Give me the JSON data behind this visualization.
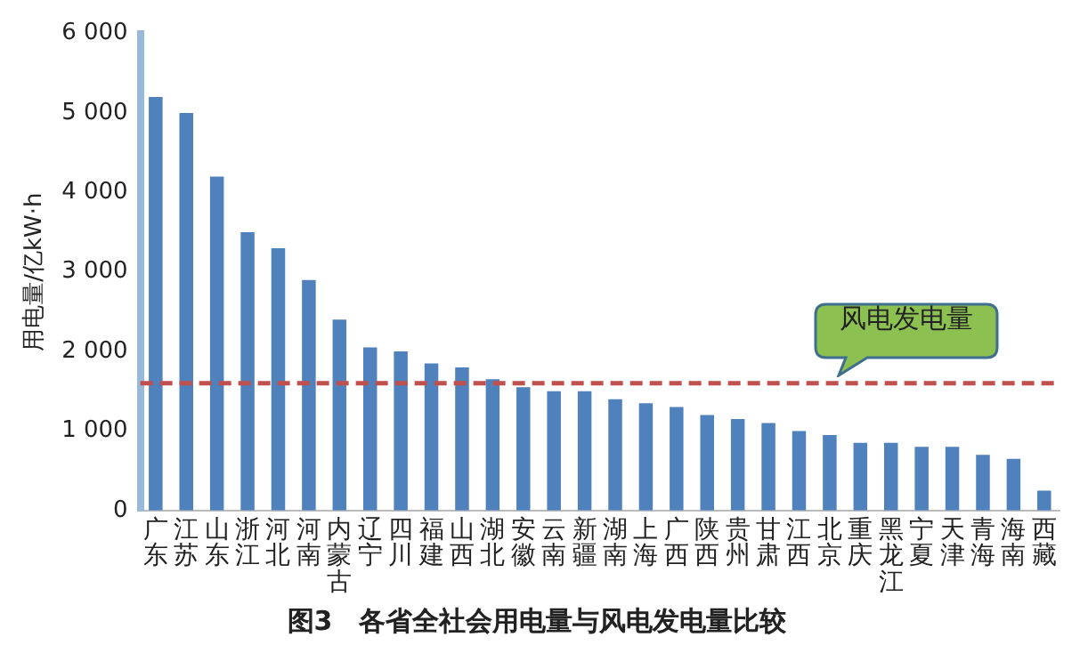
{
  "chart_data": {
    "type": "bar",
    "title": "图3　各省全社会用电量与风电发电量比较",
    "ylabel": "用电量/亿kW·h",
    "categories": [
      "广东",
      "江苏",
      "山东",
      "浙江",
      "河北",
      "河南",
      "内蒙古",
      "辽宁",
      "四川",
      "福建",
      "山西",
      "湖北",
      "安徽",
      "云南",
      "新疆",
      "湖南",
      "上海",
      "广西",
      "陕西",
      "贵州",
      "甘肃",
      "江西",
      "北京",
      "重庆",
      "黑龙江",
      "宁夏",
      "天津",
      "青海",
      "海南",
      "西藏"
    ],
    "values": [
      5200,
      5000,
      4200,
      3500,
      3300,
      2900,
      2400,
      2050,
      2000,
      1850,
      1800,
      1650,
      1550,
      1500,
      1500,
      1400,
      1350,
      1300,
      1200,
      1150,
      1100,
      1000,
      950,
      850,
      850,
      800,
      800,
      700,
      650,
      250
    ],
    "color": "#4f81bd",
    "ylim": [
      0,
      6000
    ],
    "yticks": [
      0,
      {
        "value": 1000,
        "label": "1 000"
      },
      {
        "value": 2000,
        "label": "2 000"
      },
      {
        "value": 3000,
        "label": "3 000"
      },
      {
        "value": 4000,
        "label": "4 000"
      },
      {
        "value": 5000,
        "label": "5 000"
      },
      {
        "value": 6000,
        "label": "6 000"
      }
    ],
    "ref_lines": [
      {
        "axis": "y",
        "value": 1600,
        "label": "风电发电量",
        "color": "#c0504d",
        "line_style": "dashed"
      }
    ],
    "grid": false,
    "legend": false
  }
}
